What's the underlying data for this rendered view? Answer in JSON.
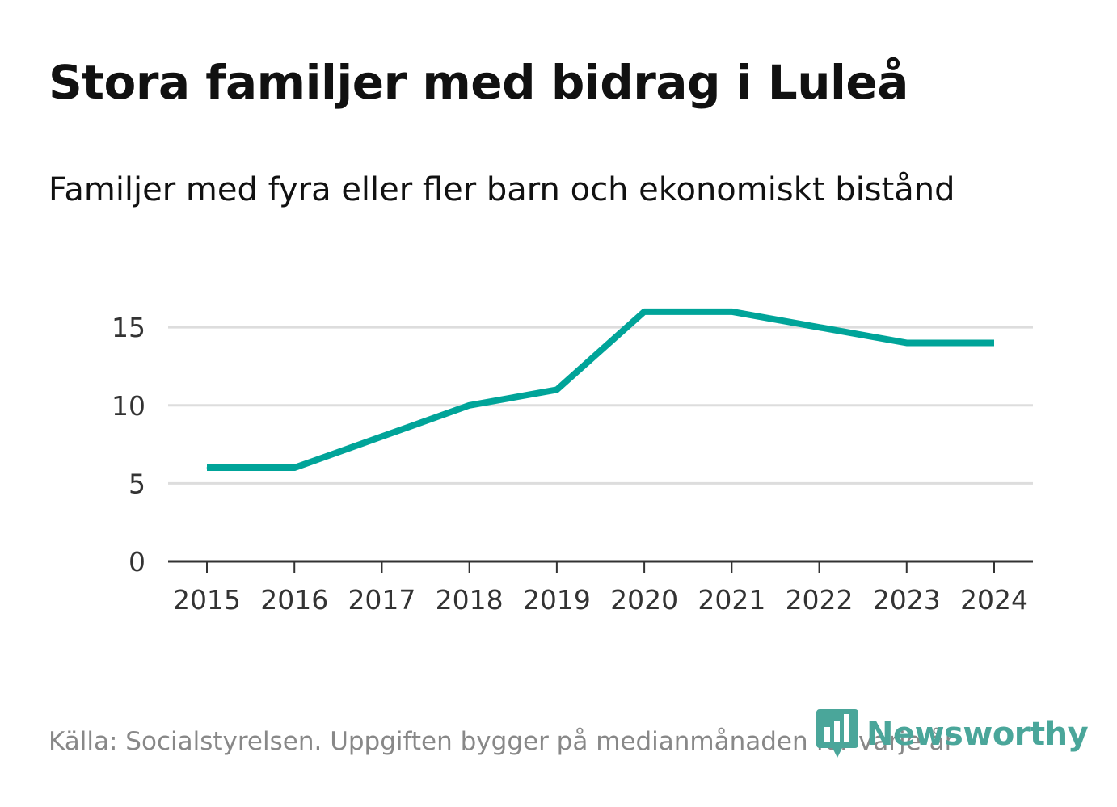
{
  "header": {
    "title": "Stora familjer med bidrag i Luleå",
    "subtitle": "Familjer med fyra eller fler barn och ekonomiskt bistånd"
  },
  "chart_data": {
    "type": "line",
    "title": "Stora familjer med bidrag i Luleå",
    "subtitle": "Familjer med fyra eller fler barn och ekonomiskt bistånd",
    "xlabel": "",
    "ylabel": "",
    "categories": [
      "2015",
      "2016",
      "2017",
      "2018",
      "2019",
      "2020",
      "2021",
      "2022",
      "2023",
      "2024"
    ],
    "series": [
      {
        "name": "Familjer",
        "values": [
          6,
          6,
          8,
          10,
          11,
          16,
          16,
          15,
          14,
          14
        ]
      }
    ],
    "ylim": [
      0,
      17
    ],
    "yticks": [
      0,
      5,
      10,
      15
    ],
    "grid": true,
    "line_color": "#00a499",
    "grid_color": "#dddddd",
    "axis_color": "#333333"
  },
  "footer": {
    "source": "Källa: Socialstyrelsen. Uppgiften bygger på medianmånaden för varje år",
    "brand": "Newsworthy",
    "brand_color": "#4aa69a",
    "logo_icon": "bar-chart-pin-icon"
  }
}
